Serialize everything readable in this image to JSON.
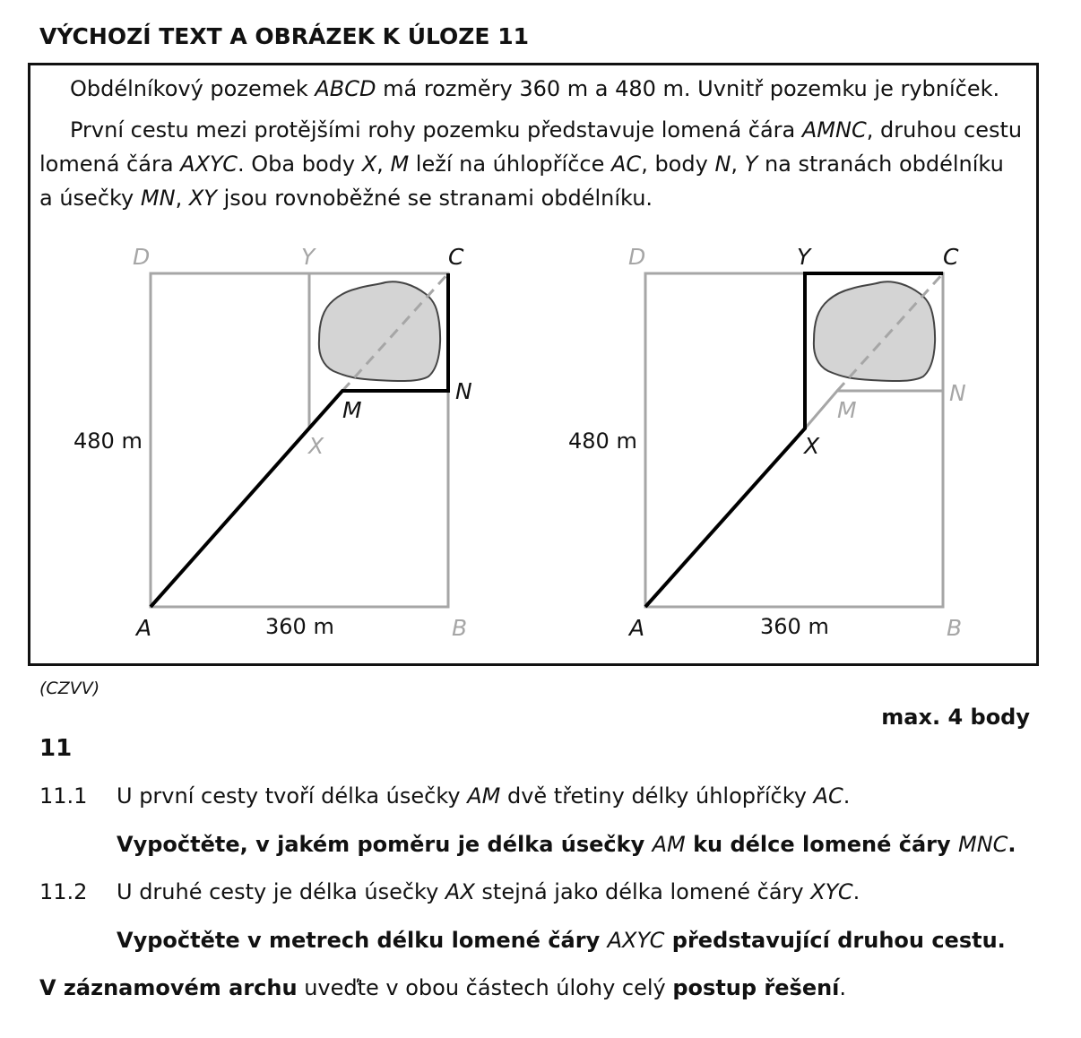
{
  "heading": "VÝCHOZÍ TEXT A OBRÁZEK K ÚLOZE 11",
  "intro": {
    "p1": [
      "Obdélníkový pozemek ",
      "ABCD",
      " má rozměry 360 m a 480 m. Uvnitř pozemku je rybníček."
    ],
    "p2_line1": [
      "První cestu mezi protějšími rohy pozemku představuje lomená čára ",
      "AMNC",
      ", druhou cestu"
    ],
    "p2_line2": [
      "lomená čára ",
      "AXYC",
      ". Oba body ",
      "X",
      ", ",
      "M",
      " leží na úhlopříčce ",
      "AC",
      ", body ",
      "N",
      ", ",
      "Y",
      " na stranách obdélníku"
    ],
    "p2_line3": [
      "a úsečky ",
      "MN",
      ", ",
      "XY",
      " jsou rovnoběžné se stranami obdélníku."
    ]
  },
  "figures": {
    "left": {
      "A": "A",
      "B": "B",
      "C": "C",
      "D": "D",
      "Y": "Y",
      "M": "M",
      "N": "N",
      "X": "X",
      "height": "480 m",
      "width": "360 m"
    },
    "right": {
      "A": "A",
      "B": "B",
      "C": "C",
      "D": "D",
      "Y": "Y",
      "M": "M",
      "N": "N",
      "X": "X",
      "height": "480 m",
      "width": "360 m"
    },
    "colors": {
      "path": "#000000",
      "grey": "#a6a6a6",
      "pond_fill": "#d4d4d4",
      "pond_stroke": "#444444"
    }
  },
  "source": "(CZVV)",
  "max_points": "max. 4 body",
  "task_number": "11",
  "q1": {
    "number": "11.1",
    "line1": [
      "U první cesty tvoří délka úsečky ",
      "AM",
      " dvě třetiny délky úhlopříčky ",
      "AC",
      "."
    ],
    "line2": [
      "Vypočtěte, v jakém poměru je délka úsečky ",
      "AM",
      " ku délce lomené čáry ",
      "MNC",
      "."
    ]
  },
  "q2": {
    "number": "11.2",
    "line1": [
      "U druhé cesty je délka úsečky ",
      "AX",
      " stejná jako délka lomené čáry ",
      "XYC",
      "."
    ],
    "line2": [
      "Vypočtěte v metrech délku lomené čáry ",
      "AXYC",
      " představující druhou cestu."
    ]
  },
  "footer": [
    "V záznamovém archu",
    " uveďte v obou částech úlohy celý ",
    "postup řešení",
    "."
  ]
}
